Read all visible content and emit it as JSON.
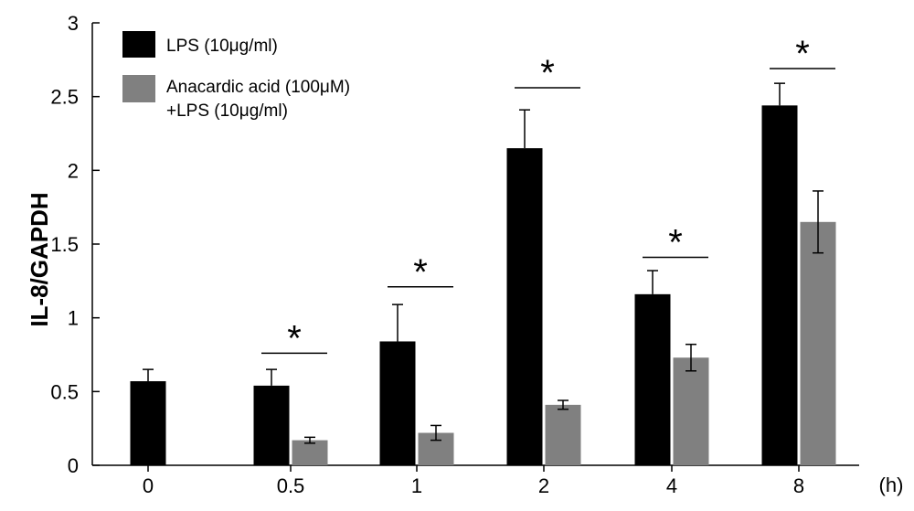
{
  "chart_data": {
    "type": "bar",
    "ylabel": "IL-8/GAPDH",
    "xlabel": "(h)",
    "ylim": [
      0,
      3
    ],
    "yticks": [
      "0",
      "0.5",
      "1",
      "1.5",
      "2",
      "2.5",
      "3"
    ],
    "categories": [
      "0",
      "0.5",
      "1",
      "2",
      "4",
      "8"
    ],
    "series": [
      {
        "name": "LPS (10μg/ml)",
        "color": "#000000",
        "values": [
          0.57,
          0.54,
          0.84,
          2.15,
          1.16,
          2.44
        ],
        "errors": [
          0.08,
          0.11,
          0.25,
          0.26,
          0.16,
          0.15
        ]
      },
      {
        "name_line1": "Anacardic acid (100μM)",
        "name_line2": "+LPS (10μg/ml)",
        "color": "#808080",
        "values": [
          null,
          0.17,
          0.22,
          0.41,
          0.73,
          1.65
        ],
        "errors": [
          null,
          0.02,
          0.05,
          0.03,
          0.09,
          0.21
        ]
      }
    ],
    "significance": [
      {
        "category": "0.5",
        "label": "*",
        "level": 0.76
      },
      {
        "category": "1",
        "label": "*",
        "level": 1.21
      },
      {
        "category": "2",
        "label": "*",
        "level": 2.56
      },
      {
        "category": "4",
        "label": "*",
        "level": 1.41
      },
      {
        "category": "8",
        "label": "*",
        "level": 2.69
      }
    ],
    "legend_position": "top-left"
  }
}
